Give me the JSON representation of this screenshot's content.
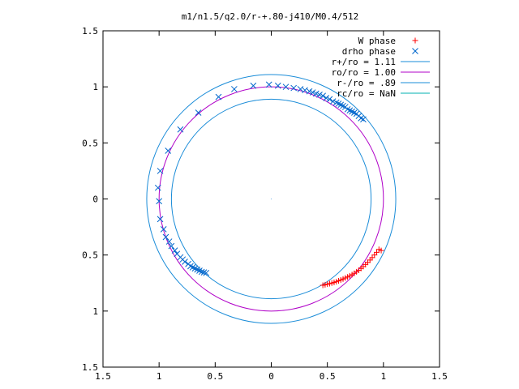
{
  "chart_data": {
    "type": "scatter",
    "title": "m1/n1.5/q2.0/r-+.80-j410/M0.4/512",
    "xlabel": "",
    "ylabel": "",
    "xlim": [
      -1.5,
      1.5
    ],
    "ylim": [
      -1.5,
      1.5
    ],
    "xticks": [
      -1.5,
      -1,
      -0.5,
      0,
      0.5,
      1,
      1.5
    ],
    "yticks": [
      -1.5,
      -1,
      -0.5,
      0,
      0.5,
      1,
      1.5
    ],
    "xtick_labels": [
      "1.5",
      "1",
      "0.5",
      "0",
      "0.5",
      "1",
      "1.5"
    ],
    "ytick_labels": [
      "1.5",
      "1",
      "0.5",
      "0",
      "0.5",
      "1",
      "1.5"
    ],
    "grid": false,
    "legend_position": "top-right",
    "series": [
      {
        "name": "W phase",
        "kind": "markers",
        "marker": "plus",
        "color": "#ff0000",
        "points": [
          [
            0.46,
            -0.77
          ],
          [
            0.48,
            -0.765
          ],
          [
            0.5,
            -0.76
          ],
          [
            0.52,
            -0.755
          ],
          [
            0.54,
            -0.75
          ],
          [
            0.56,
            -0.745
          ],
          [
            0.58,
            -0.738
          ],
          [
            0.6,
            -0.73
          ],
          [
            0.62,
            -0.722
          ],
          [
            0.64,
            -0.714
          ],
          [
            0.66,
            -0.705
          ],
          [
            0.68,
            -0.696
          ],
          [
            0.7,
            -0.686
          ],
          [
            0.72,
            -0.675
          ],
          [
            0.74,
            -0.663
          ],
          [
            0.76,
            -0.65
          ],
          [
            0.78,
            -0.636
          ],
          [
            0.8,
            -0.62
          ],
          [
            0.82,
            -0.603
          ],
          [
            0.84,
            -0.585
          ],
          [
            0.86,
            -0.566
          ],
          [
            0.88,
            -0.545
          ],
          [
            0.9,
            -0.523
          ],
          [
            0.92,
            -0.5
          ],
          [
            0.94,
            -0.476
          ],
          [
            0.96,
            -0.45
          ],
          [
            0.98,
            -0.46
          ]
        ]
      },
      {
        "name": "drho phase",
        "kind": "markers",
        "marker": "x",
        "color": "#0066cc",
        "points": [
          [
            -0.02,
            1.02
          ],
          [
            -0.16,
            1.01
          ],
          [
            -0.33,
            0.98
          ],
          [
            -0.47,
            0.91
          ],
          [
            -0.65,
            0.77
          ],
          [
            -0.81,
            0.62
          ],
          [
            -0.92,
            0.43
          ],
          [
            -0.99,
            0.25
          ],
          [
            -1.01,
            0.1
          ],
          [
            -1.0,
            -0.02
          ],
          [
            -0.99,
            -0.18
          ],
          [
            -0.96,
            -0.27
          ],
          [
            -0.94,
            -0.34
          ],
          [
            -0.91,
            -0.38
          ],
          [
            -0.89,
            -0.42
          ],
          [
            -0.86,
            -0.46
          ],
          [
            -0.84,
            -0.49
          ],
          [
            -0.81,
            -0.52
          ],
          [
            -0.79,
            -0.54
          ],
          [
            -0.77,
            -0.56
          ],
          [
            -0.74,
            -0.58
          ],
          [
            -0.72,
            -0.6
          ],
          [
            -0.7,
            -0.61
          ],
          [
            -0.68,
            -0.62
          ],
          [
            -0.66,
            -0.63
          ],
          [
            -0.64,
            -0.64
          ],
          [
            -0.62,
            -0.65
          ],
          [
            -0.6,
            -0.655
          ],
          [
            -0.58,
            -0.66
          ],
          [
            0.06,
            1.01
          ],
          [
            0.13,
            1.0
          ],
          [
            0.2,
            0.99
          ],
          [
            0.26,
            0.98
          ],
          [
            0.3,
            0.97
          ],
          [
            0.34,
            0.96
          ],
          [
            0.37,
            0.95
          ],
          [
            0.4,
            0.94
          ],
          [
            0.43,
            0.93
          ],
          [
            0.46,
            0.92
          ],
          [
            0.49,
            0.9
          ],
          [
            0.52,
            0.89
          ],
          [
            0.55,
            0.87
          ],
          [
            0.58,
            0.86
          ],
          [
            0.6,
            0.85
          ],
          [
            0.62,
            0.84
          ],
          [
            0.64,
            0.83
          ],
          [
            0.66,
            0.82
          ],
          [
            0.68,
            0.8
          ],
          [
            0.7,
            0.79
          ],
          [
            0.72,
            0.78
          ],
          [
            0.74,
            0.77
          ],
          [
            0.76,
            0.76
          ],
          [
            0.78,
            0.74
          ],
          [
            0.8,
            0.72
          ],
          [
            0.82,
            0.71
          ]
        ]
      },
      {
        "name": "r+/ro = 1.11",
        "kind": "circle",
        "radius": 1.11,
        "color": "#1a8cd8"
      },
      {
        "name": "ro/ro = 1.00",
        "kind": "circle",
        "radius": 1.0,
        "color": "#b000c8"
      },
      {
        "name": "r-/ro = .89",
        "kind": "circle",
        "radius": 0.89,
        "color": "#1a8cd8"
      },
      {
        "name": "rc/ro = NaN",
        "kind": "circle",
        "radius": null,
        "color": "#00b0b0"
      }
    ]
  }
}
